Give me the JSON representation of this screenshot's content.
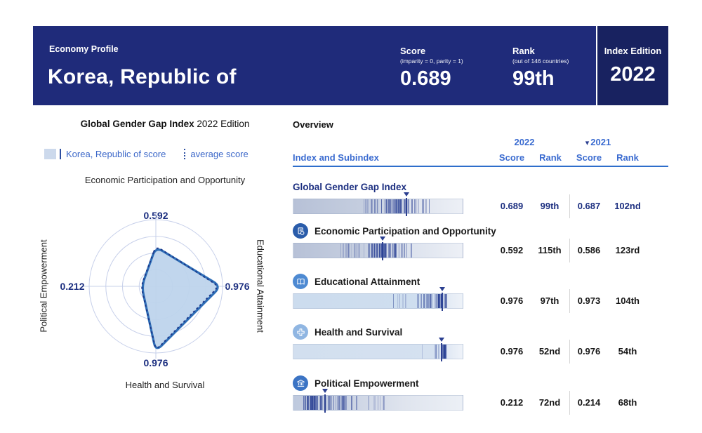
{
  "header": {
    "eyebrow": "Economy Profile",
    "title": "Korea, Republic of",
    "score_label": "Score",
    "score_sub": "(imparity = 0, parity = 1)",
    "score_value": "0.689",
    "rank_label": "Rank",
    "rank_sub": "(out of 146 countries)",
    "rank_value": "99th",
    "edition_label": "Index Edition",
    "edition_value": "2022",
    "bg_color": "#1f2b7a",
    "edition_bg_color": "#182260"
  },
  "left_panel": {
    "title_bold": "Global Gender Gap Index",
    "title_rest": " 2022 Edition",
    "legend_country": "Korea, Republic of score",
    "legend_average": "average score"
  },
  "chart_data": {
    "type": "radar",
    "title": "Global Gender Gap Index 2022 Edition",
    "axes": [
      "Economic Participation and Opportunity",
      "Educational Attainment",
      "Health and Survival",
      "Political Empowerment"
    ],
    "rmax": 1.0,
    "rings": [
      0.25,
      0.5,
      0.75,
      1.0
    ],
    "series": [
      {
        "name": "Korea, Republic of score",
        "values": [
          0.592,
          0.976,
          0.976,
          0.212
        ],
        "style": "solid-filled"
      },
      {
        "name": "average score",
        "values": [
          0.604,
          0.946,
          0.959,
          0.22
        ],
        "style": "dashed"
      }
    ],
    "value_labels": {
      "top": "0.592",
      "right": "0.976",
      "bottom": "0.976",
      "left": "0.212"
    }
  },
  "table": {
    "section_title": "Overview",
    "year_2022": "2022",
    "year_2021": "2021",
    "year_dropdown_icon": "▾",
    "col_index": "Index and Subindex",
    "col_score": "Score",
    "col_rank": "Rank",
    "rows": [
      {
        "label": "Global Gender Gap Index",
        "icon": null,
        "icon_color": null,
        "highlight": true,
        "score_2022": "0.689",
        "rank_2022": "99th",
        "score_2021": "0.687",
        "rank_2021": "102nd",
        "strip": {
          "marker": 0.67,
          "bg": [
            [
              "#b7c1d7",
              0
            ],
            [
              "#c6cfe0",
              45
            ],
            [
              "#dfe4ee",
              72
            ],
            [
              "#edf0f6",
              100
            ]
          ],
          "clusters": [
            {
              "c": 0.62,
              "s": 0.09,
              "n": 46,
              "o": 0.45
            },
            {
              "c": 0.48,
              "s": 0.1,
              "n": 20,
              "o": 0.25
            },
            {
              "c": 0.78,
              "s": 0.04,
              "n": 8,
              "o": 0.3
            }
          ]
        }
      },
      {
        "label": "Economic Participation and Opportunity",
        "icon": "economic",
        "icon_color": "#2a5caa",
        "highlight": false,
        "score_2022": "0.592",
        "rank_2022": "115th",
        "score_2021": "0.586",
        "rank_2021": "123rd",
        "strip": {
          "marker": 0.527,
          "bg": [
            [
              "#b7c1d7",
              0
            ],
            [
              "#c6cfe0",
              40
            ],
            [
              "#dde3ee",
              70
            ],
            [
              "#edf0f6",
              100
            ]
          ],
          "clusters": [
            {
              "c": 0.52,
              "s": 0.08,
              "n": 46,
              "o": 0.45
            },
            {
              "c": 0.38,
              "s": 0.09,
              "n": 18,
              "o": 0.25
            },
            {
              "c": 0.64,
              "s": 0.05,
              "n": 10,
              "o": 0.3
            }
          ]
        }
      },
      {
        "label": "Educational Attainment",
        "icon": "education",
        "icon_color": "#4e8ad2",
        "highlight": false,
        "score_2022": "0.976",
        "rank_2022": "97th",
        "score_2021": "0.973",
        "rank_2021": "104th",
        "strip": {
          "marker": 0.88,
          "bg": [
            [
              "#ccdcee",
              0
            ],
            [
              "#cfdeef",
              80
            ],
            [
              "#e2eaf4",
              90
            ],
            [
              "#eef2f8",
              100
            ]
          ],
          "clusters": [
            {
              "c": 0.87,
              "s": 0.025,
              "n": 30,
              "o": 0.6
            },
            {
              "c": 0.78,
              "s": 0.06,
              "n": 20,
              "o": 0.3
            },
            {
              "c": 0.6,
              "s": 0.09,
              "n": 10,
              "o": 0.15
            }
          ]
        }
      },
      {
        "label": "Health and Survival",
        "icon": "health",
        "icon_color": "#90b6e2",
        "highlight": false,
        "score_2022": "0.976",
        "rank_2022": "52nd",
        "score_2021": "0.976",
        "rank_2021": "54th",
        "strip": {
          "marker": 0.875,
          "bg": [
            [
              "#d2dfef",
              0
            ],
            [
              "#d5e1f0",
              85
            ],
            [
              "#e7edf6",
              95
            ],
            [
              "#eff3f9",
              100
            ]
          ],
          "clusters": [
            {
              "c": 0.89,
              "s": 0.012,
              "n": 26,
              "o": 0.65
            },
            {
              "c": 0.82,
              "s": 0.04,
              "n": 6,
              "o": 0.2
            }
          ]
        }
      },
      {
        "label": "Political Empowerment",
        "icon": "political",
        "icon_color": "#3c74c4",
        "highlight": false,
        "score_2022": "0.212",
        "rank_2022": "72nd",
        "score_2021": "0.214",
        "rank_2021": "68th",
        "strip": {
          "marker": 0.185,
          "bg": [
            [
              "#bec9de",
              0
            ],
            [
              "#ccd4e4",
              35
            ],
            [
              "#dfe4ee",
              65
            ],
            [
              "#ecf0f6",
              100
            ]
          ],
          "clusters": [
            {
              "c": 0.12,
              "s": 0.06,
              "n": 40,
              "o": 0.5
            },
            {
              "c": 0.28,
              "s": 0.07,
              "n": 22,
              "o": 0.4
            },
            {
              "c": 0.47,
              "s": 0.1,
              "n": 10,
              "o": 0.25
            }
          ]
        }
      }
    ]
  },
  "colors": {
    "navy_text": "#1c2f80",
    "blue_text": "#3a6bd0",
    "radar_ring": "#c7d0ea",
    "radar_fill": "#bed4ec",
    "radar_stroke": "#2f6fb7",
    "radar_avg_stroke": "#1e3a8c",
    "tick": "#2e4496",
    "rule": "#2e6ecb"
  }
}
